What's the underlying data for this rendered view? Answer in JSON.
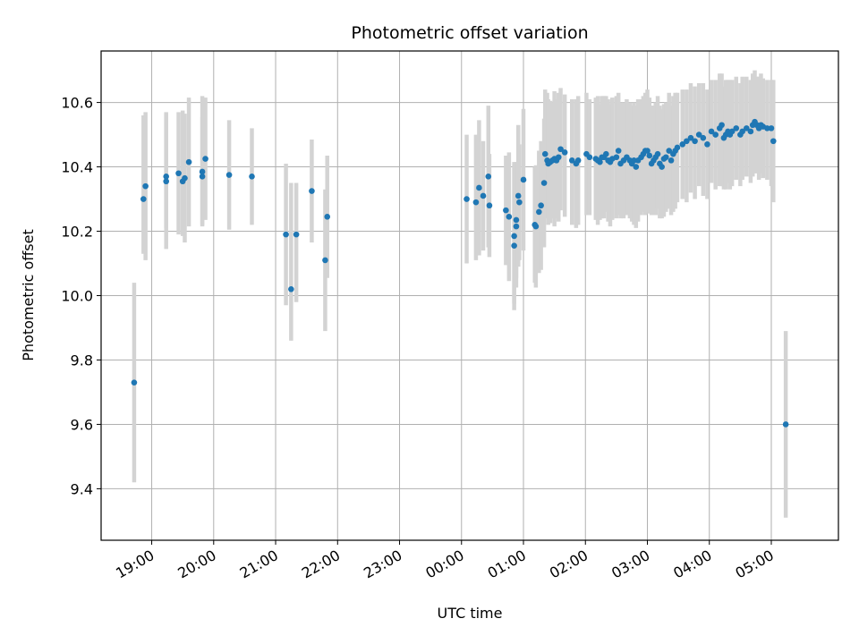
{
  "chart_data": {
    "type": "scatter",
    "title": "Photometric offset variation",
    "xlabel": "UTC time",
    "ylabel": "Photometric offset",
    "xlim": [
      "18:11",
      "06:05"
    ],
    "ylim": [
      9.24,
      10.76
    ],
    "x_ticks": [
      "19:00",
      "20:00",
      "21:00",
      "22:00",
      "23:00",
      "00:00",
      "01:00",
      "02:00",
      "03:00",
      "04:00",
      "05:00"
    ],
    "y_ticks": [
      "9.4",
      "9.6",
      "9.8",
      "10.0",
      "10.2",
      "10.4",
      "10.6"
    ],
    "grid": true,
    "colors": {
      "point": "#1f77b4",
      "errorbar": "#d3d3d3",
      "grid": "#b0b0b0"
    },
    "series": [
      {
        "x": [
          "18:43",
          "18:52",
          "18:54",
          "19:14",
          "19:14",
          "19:26",
          "19:30",
          "19:32",
          "19:36",
          "19:49",
          "19:49",
          "19:52",
          "20:15",
          "20:37",
          "21:10",
          "21:15",
          "21:20",
          "21:35",
          "21:48",
          "21:50",
          "00:05",
          "00:14",
          "00:17",
          "00:21",
          "00:26",
          "00:27",
          "00:43",
          "00:46",
          "00:51",
          "00:51",
          "00:53",
          "00:53",
          "00:55",
          "00:56",
          "01:00",
          "01:11",
          "01:12",
          "01:15",
          "01:17",
          "01:20",
          "01:21",
          "01:23",
          "01:24",
          "01:26",
          "01:28",
          "01:30",
          "01:32",
          "01:34",
          "01:36",
          "01:40",
          "01:47",
          "01:51",
          "01:53",
          "02:01",
          "02:04",
          "02:10",
          "02:12",
          "02:14",
          "02:16",
          "02:18",
          "02:20",
          "02:22",
          "02:24",
          "02:26",
          "02:30",
          "02:32",
          "02:34",
          "02:37",
          "02:40",
          "02:43",
          "02:45",
          "02:47",
          "02:49",
          "02:51",
          "02:54",
          "02:56",
          "02:58",
          "03:00",
          "03:02",
          "03:04",
          "03:06",
          "03:08",
          "03:10",
          "03:12",
          "03:14",
          "03:16",
          "03:18",
          "03:21",
          "03:23",
          "03:25",
          "03:27",
          "03:29",
          "03:34",
          "03:38",
          "03:42",
          "03:46",
          "03:50",
          "03:54",
          "03:58",
          "04:02",
          "04:06",
          "04:10",
          "04:12",
          "04:14",
          "04:16",
          "04:18",
          "04:20",
          "04:22",
          "04:26",
          "04:30",
          "04:32",
          "04:36",
          "04:40",
          "04:42",
          "04:44",
          "04:46",
          "04:48",
          "04:50",
          "04:52",
          "04:56",
          "05:00",
          "05:02",
          "05:14"
        ],
        "y": [
          9.73,
          10.3,
          10.34,
          10.355,
          10.37,
          10.38,
          10.355,
          10.365,
          10.415,
          10.385,
          10.37,
          10.425,
          10.375,
          10.37,
          10.19,
          10.02,
          10.19,
          10.325,
          10.11,
          10.245,
          10.3,
          10.29,
          10.335,
          10.31,
          10.37,
          10.28,
          10.265,
          10.245,
          10.155,
          10.185,
          10.215,
          10.235,
          10.31,
          10.29,
          10.36,
          10.22,
          10.215,
          10.26,
          10.28,
          10.35,
          10.44,
          10.42,
          10.41,
          10.415,
          10.42,
          10.425,
          10.42,
          10.43,
          10.455,
          10.445,
          10.42,
          10.41,
          10.42,
          10.44,
          10.43,
          10.425,
          10.42,
          10.415,
          10.43,
          10.43,
          10.44,
          10.42,
          10.415,
          10.425,
          10.43,
          10.45,
          10.41,
          10.42,
          10.43,
          10.42,
          10.41,
          10.42,
          10.4,
          10.42,
          10.43,
          10.44,
          10.45,
          10.45,
          10.435,
          10.41,
          10.42,
          10.43,
          10.44,
          10.41,
          10.4,
          10.425,
          10.43,
          10.45,
          10.42,
          10.44,
          10.45,
          10.46,
          10.47,
          10.48,
          10.49,
          10.48,
          10.5,
          10.49,
          10.47,
          10.51,
          10.5,
          10.52,
          10.53,
          10.49,
          10.5,
          10.51,
          10.5,
          10.51,
          10.52,
          10.5,
          10.51,
          10.52,
          10.51,
          10.53,
          10.54,
          10.53,
          10.52,
          10.53,
          10.525,
          10.52,
          10.52,
          10.48,
          9.6
        ],
        "yerr_low": [
          0.31,
          0.17,
          0.23,
          0.21,
          0.16,
          0.19,
          0.17,
          0.2,
          0.2,
          0.17,
          0.15,
          0.19,
          0.17,
          0.15,
          0.22,
          0.16,
          0.21,
          0.16,
          0.22,
          0.19,
          0.2,
          0.18,
          0.21,
          0.17,
          0.22,
          0.16,
          0.17,
          0.2,
          0.2,
          0.21,
          0.19,
          0.18,
          0.22,
          0.18,
          0.22,
          0.18,
          0.19,
          0.19,
          0.2,
          0.2,
          0.19,
          0.18,
          0.19,
          0.19,
          0.18,
          0.21,
          0.18,
          0.2,
          0.19,
          0.2,
          0.2,
          0.2,
          0.2,
          0.19,
          0.18,
          0.19,
          0.2,
          0.18,
          0.19,
          0.19,
          0.18,
          0.19,
          0.2,
          0.19,
          0.19,
          0.2,
          0.17,
          0.18,
          0.18,
          0.18,
          0.18,
          0.2,
          0.19,
          0.19,
          0.18,
          0.18,
          0.2,
          0.19,
          0.18,
          0.16,
          0.17,
          0.18,
          0.17,
          0.17,
          0.16,
          0.18,
          0.17,
          0.18,
          0.17,
          0.18,
          0.18,
          0.17,
          0.17,
          0.19,
          0.17,
          0.18,
          0.16,
          0.18,
          0.17,
          0.16,
          0.17,
          0.18,
          0.19,
          0.16,
          0.17,
          0.16,
          0.17,
          0.17,
          0.16,
          0.16,
          0.15,
          0.15,
          0.16,
          0.16,
          0.16,
          0.15,
          0.16,
          0.15,
          0.16,
          0.16,
          0.18,
          0.19,
          0.29
        ],
        "yerr_high": [
          0.31,
          0.26,
          0.23,
          0.21,
          0.2,
          0.19,
          0.22,
          0.2,
          0.2,
          0.17,
          0.25,
          0.19,
          0.17,
          0.15,
          0.22,
          0.33,
          0.16,
          0.16,
          0.22,
          0.19,
          0.2,
          0.21,
          0.21,
          0.17,
          0.22,
          0.16,
          0.17,
          0.2,
          0.25,
          0.23,
          0.19,
          0.18,
          0.22,
          0.18,
          0.22,
          0.18,
          0.19,
          0.19,
          0.2,
          0.2,
          0.2,
          0.21,
          0.2,
          0.19,
          0.18,
          0.21,
          0.19,
          0.2,
          0.19,
          0.18,
          0.19,
          0.2,
          0.2,
          0.19,
          0.18,
          0.19,
          0.2,
          0.18,
          0.19,
          0.19,
          0.18,
          0.19,
          0.18,
          0.19,
          0.19,
          0.18,
          0.19,
          0.18,
          0.18,
          0.18,
          0.18,
          0.18,
          0.19,
          0.19,
          0.18,
          0.18,
          0.18,
          0.19,
          0.18,
          0.18,
          0.17,
          0.17,
          0.18,
          0.18,
          0.18,
          0.17,
          0.17,
          0.18,
          0.17,
          0.18,
          0.18,
          0.17,
          0.17,
          0.16,
          0.17,
          0.17,
          0.16,
          0.17,
          0.17,
          0.16,
          0.17,
          0.17,
          0.16,
          0.16,
          0.17,
          0.16,
          0.17,
          0.16,
          0.16,
          0.16,
          0.17,
          0.16,
          0.16,
          0.16,
          0.16,
          0.15,
          0.16,
          0.16,
          0.15,
          0.15,
          0.15,
          0.19,
          0.29
        ]
      }
    ]
  }
}
